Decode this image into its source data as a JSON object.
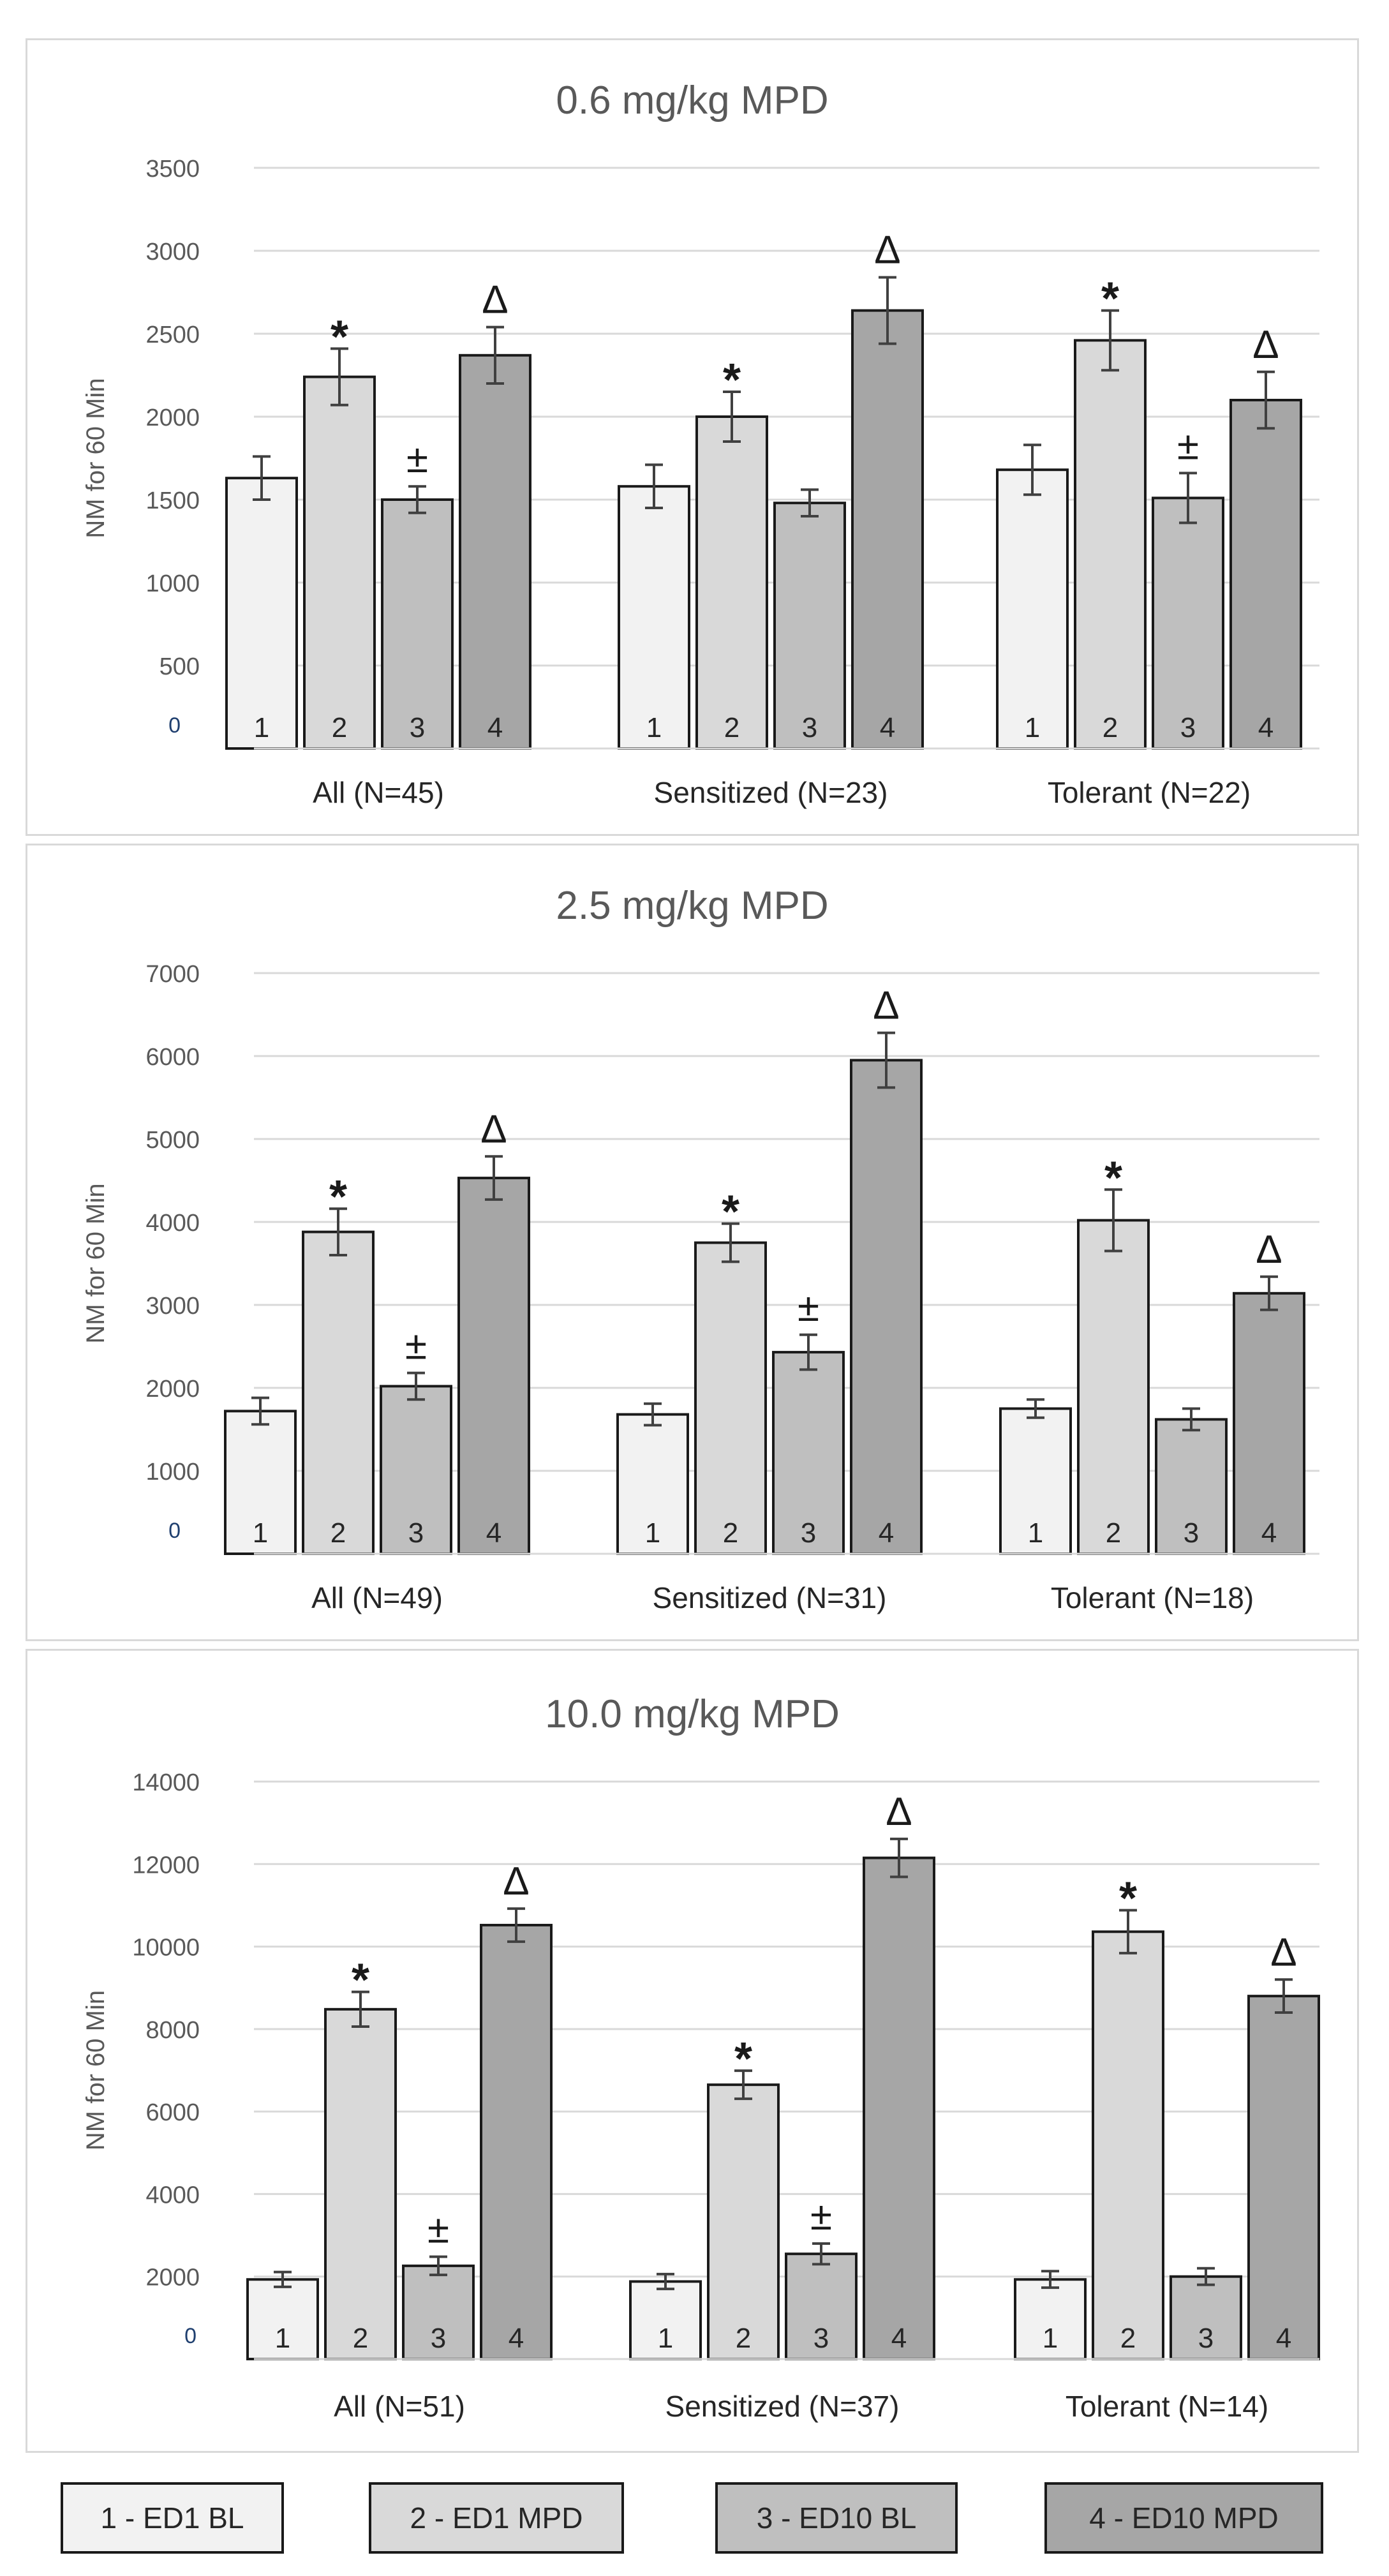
{
  "chart_data": [
    {
      "type": "bar",
      "title": "0.6 mg/kg MPD",
      "ylabel": "NM for 60 Min",
      "ylim": [
        0,
        3500
      ],
      "yticks": [
        "0",
        "500",
        "1000",
        "1500",
        "2000",
        "2500",
        "3000",
        "3500"
      ],
      "groups": [
        "All (N=45)",
        "Sensitized (N=23)",
        "Tolerant (N=22)"
      ],
      "bar_labels": [
        "1",
        "2",
        "3",
        "4"
      ],
      "series": [
        {
          "name": "1 - ED1 BL",
          "values": [
            1630,
            1580,
            1680
          ],
          "errors": [
            130,
            130,
            150
          ]
        },
        {
          "name": "2 - ED1 MPD",
          "values": [
            2240,
            2000,
            2460
          ],
          "errors": [
            170,
            150,
            180
          ]
        },
        {
          "name": "3 - ED10 BL",
          "values": [
            1500,
            1480,
            1510
          ],
          "errors": [
            80,
            80,
            150
          ]
        },
        {
          "name": "4 - ED10 MPD",
          "values": [
            2370,
            2640,
            2100
          ],
          "errors": [
            170,
            200,
            170
          ]
        }
      ],
      "markers": [
        {
          "group": 0,
          "bar": 1,
          "symbol": "*"
        },
        {
          "group": 0,
          "bar": 2,
          "symbol": "±"
        },
        {
          "group": 0,
          "bar": 3,
          "symbol": "Δ"
        },
        {
          "group": 1,
          "bar": 1,
          "symbol": "*"
        },
        {
          "group": 1,
          "bar": 3,
          "symbol": "Δ"
        },
        {
          "group": 2,
          "bar": 1,
          "symbol": "*"
        },
        {
          "group": 2,
          "bar": 2,
          "symbol": "±"
        },
        {
          "group": 2,
          "bar": 3,
          "symbol": "Δ"
        }
      ]
    },
    {
      "type": "bar",
      "title": "2.5 mg/kg MPD",
      "ylabel": "NM for 60 Min",
      "ylim": [
        0,
        7000
      ],
      "yticks": [
        "0",
        "1000",
        "2000",
        "3000",
        "4000",
        "5000",
        "6000",
        "7000"
      ],
      "groups": [
        "All (N=49)",
        "Sensitized (N=31)",
        "Tolerant (N=18)"
      ],
      "bar_labels": [
        "1",
        "2",
        "3",
        "4"
      ],
      "series": [
        {
          "name": "1 - ED1 BL",
          "values": [
            1720,
            1680,
            1750
          ],
          "errors": [
            160,
            130,
            110
          ]
        },
        {
          "name": "2 - ED1 MPD",
          "values": [
            3880,
            3750,
            4020
          ],
          "errors": [
            280,
            230,
            370
          ]
        },
        {
          "name": "3 - ED10 BL",
          "values": [
            2020,
            2430,
            1620
          ],
          "errors": [
            160,
            210,
            130
          ]
        },
        {
          "name": "4 - ED10 MPD",
          "values": [
            4530,
            5950,
            3140
          ],
          "errors": [
            260,
            330,
            200
          ]
        }
      ],
      "markers": [
        {
          "group": 0,
          "bar": 1,
          "symbol": "*"
        },
        {
          "group": 0,
          "bar": 2,
          "symbol": "±"
        },
        {
          "group": 0,
          "bar": 3,
          "symbol": "Δ"
        },
        {
          "group": 1,
          "bar": 1,
          "symbol": "*"
        },
        {
          "group": 1,
          "bar": 2,
          "symbol": "±"
        },
        {
          "group": 1,
          "bar": 3,
          "symbol": "Δ"
        },
        {
          "group": 2,
          "bar": 1,
          "symbol": "*"
        },
        {
          "group": 2,
          "bar": 3,
          "symbol": "Δ"
        }
      ]
    },
    {
      "type": "bar",
      "title": "10.0 mg/kg MPD",
      "ylabel": "NM for 60 Min",
      "ylim": [
        0,
        14000
      ],
      "yticks": [
        "0",
        "2000",
        "4000",
        "6000",
        "8000",
        "10000",
        "12000",
        "14000"
      ],
      "groups": [
        "All (N=51)",
        "Sensitized (N=37)",
        "Tolerant (N=14)"
      ],
      "bar_labels": [
        "1",
        "2",
        "3",
        "4"
      ],
      "series": [
        {
          "name": "1 - ED1 BL",
          "values": [
            1930,
            1880,
            1930
          ],
          "errors": [
            180,
            180,
            200
          ]
        },
        {
          "name": "2 - ED1 MPD",
          "values": [
            8480,
            6650,
            10360
          ],
          "errors": [
            420,
            340,
            520
          ]
        },
        {
          "name": "3 - ED10 BL",
          "values": [
            2260,
            2550,
            2000
          ],
          "errors": [
            220,
            250,
            200
          ]
        },
        {
          "name": "4 - ED10 MPD",
          "values": [
            10520,
            12150,
            8800
          ],
          "errors": [
            400,
            460,
            400
          ]
        }
      ],
      "markers": [
        {
          "group": 0,
          "bar": 1,
          "symbol": "*"
        },
        {
          "group": 0,
          "bar": 2,
          "symbol": "±"
        },
        {
          "group": 0,
          "bar": 3,
          "symbol": "Δ"
        },
        {
          "group": 1,
          "bar": 1,
          "symbol": "*"
        },
        {
          "group": 1,
          "bar": 2,
          "symbol": "±"
        },
        {
          "group": 1,
          "bar": 3,
          "symbol": "Δ"
        },
        {
          "group": 2,
          "bar": 1,
          "symbol": "*"
        },
        {
          "group": 2,
          "bar": 3,
          "symbol": "Δ"
        }
      ]
    }
  ],
  "legend": {
    "items": [
      {
        "label": "1 - ED1 BL",
        "color": "#f2f2f2"
      },
      {
        "label": "2 - ED1 MPD",
        "color": "#d9d9d9"
      },
      {
        "label": "3 - ED10 BL",
        "color": "#bfbfbf"
      },
      {
        "label": "4 - ED10 MPD",
        "color": "#a6a6a6"
      }
    ]
  }
}
